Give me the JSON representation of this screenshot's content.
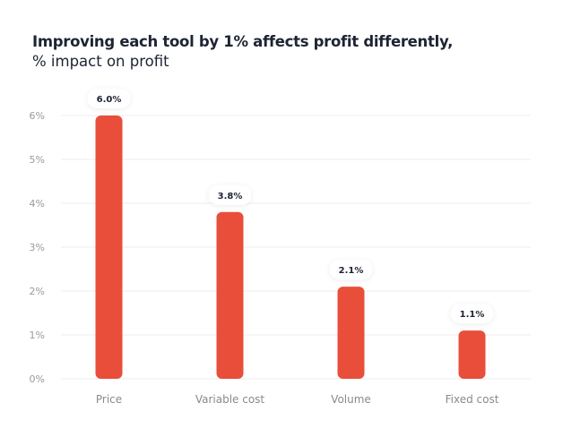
{
  "chart_data": {
    "type": "bar",
    "title": "Improving each tool by 1% affects profit differently,",
    "subtitle": "% impact on profit",
    "categories": [
      "Price",
      "Variable cost",
      "Volume",
      "Fixed cost"
    ],
    "values": [
      6.0,
      3.8,
      2.1,
      1.1
    ],
    "data_labels": [
      "6.0%",
      "3.8%",
      "2.1%",
      "1.1%"
    ],
    "y_ticks": [
      "0%",
      "1%",
      "2%",
      "3%",
      "4%",
      "5%",
      "6%"
    ],
    "ylim": [
      0,
      6
    ],
    "xlabel": "",
    "ylabel": "",
    "grid": true,
    "bar_color": "#E84E3A"
  }
}
